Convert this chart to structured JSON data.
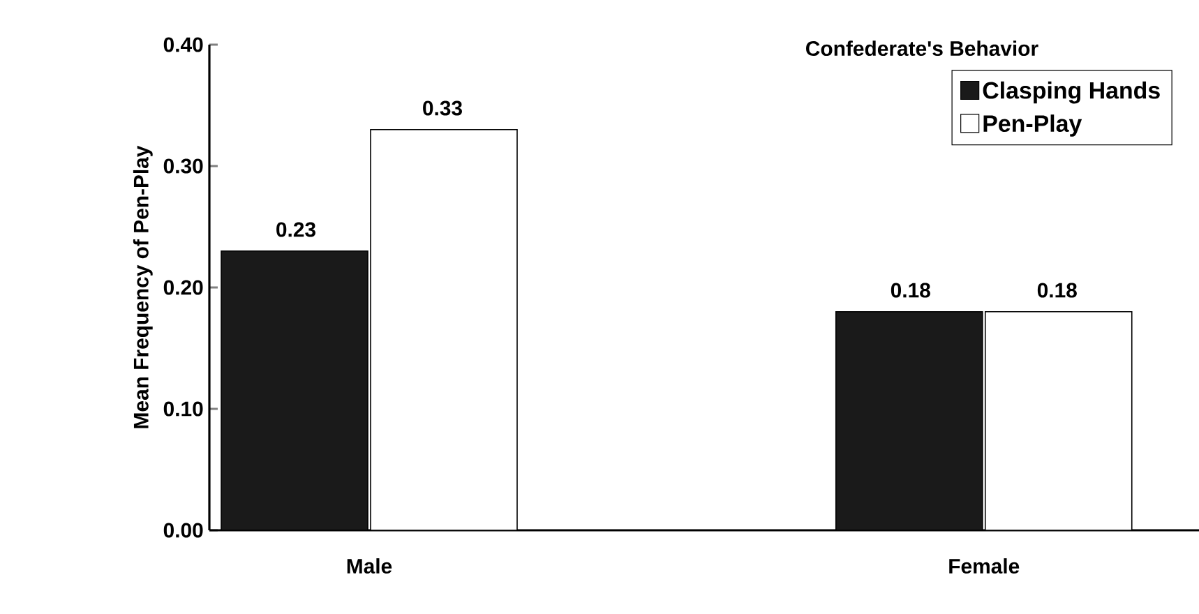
{
  "chart_data": {
    "type": "bar",
    "ylabel": "Mean Frequency of Pen-Play",
    "legend_title": "Confederate's Behavior",
    "categories": [
      "Male",
      "Female"
    ],
    "series": [
      {
        "name": "Clasping Hands",
        "color": "#1a1a1a",
        "values": [
          0.23,
          0.18
        ],
        "value_labels": [
          "0.23",
          "0.18"
        ]
      },
      {
        "name": "Pen-Play",
        "color": "#ffffff",
        "values": [
          0.33,
          0.18
        ],
        "value_labels": [
          "0.33",
          "0.18"
        ]
      }
    ],
    "ylim": [
      0,
      0.4
    ],
    "yticks": [
      {
        "value": 0,
        "label": "0.00"
      },
      {
        "value": 0.1,
        "label": "0.10"
      },
      {
        "value": 0.2,
        "label": "0.20"
      },
      {
        "value": 0.3,
        "label": "0.30"
      },
      {
        "value": 0.4,
        "label": "0.40"
      }
    ],
    "grid": false,
    "legend": "top right"
  }
}
